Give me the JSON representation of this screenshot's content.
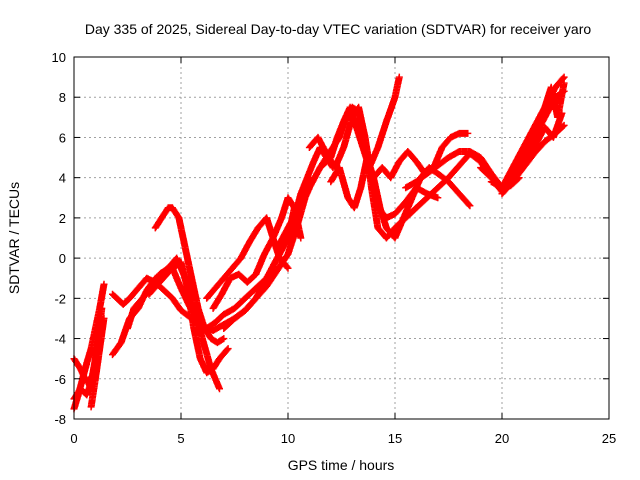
{
  "chart_data": {
    "type": "scatter",
    "title": "Day 335 of 2025, Sidereal Day-to-day VTEC variation (SDTVAR) for receiver yaro",
    "xlabel": "GPS time / hours",
    "ylabel": "SDTVAR / TECUs",
    "xlim": [
      0,
      25
    ],
    "ylim": [
      -8,
      10
    ],
    "xticks": [
      0,
      5,
      10,
      15,
      20,
      25
    ],
    "yticks": [
      -8,
      -6,
      -4,
      -2,
      0,
      2,
      4,
      6,
      8,
      10
    ],
    "grid": true,
    "marker": "plus",
    "color": "#ff0000",
    "series": [
      {
        "x": [
          0.0,
          0.2,
          0.4,
          0.6,
          0.8,
          1.0,
          1.2,
          1.4
        ],
        "y": [
          -7.5,
          -6.8,
          -6.0,
          -5.2,
          -4.5,
          -3.5,
          -2.5,
          -1.3
        ]
      },
      {
        "x": [
          0.0,
          0.3,
          0.6,
          0.9,
          1.1,
          1.3
        ],
        "y": [
          -5.0,
          -5.5,
          -6.2,
          -5.8,
          -4.2,
          -2.5
        ]
      },
      {
        "x": [
          0.0,
          0.3,
          0.6,
          0.8,
          1.0,
          1.2
        ],
        "y": [
          -7.0,
          -6.5,
          -6.8,
          -6.2,
          -5.0,
          -3.5
        ]
      },
      {
        "x": [
          0.8,
          1.0,
          1.2,
          1.4
        ],
        "y": [
          -7.4,
          -6.0,
          -4.5,
          -3.0
        ]
      },
      {
        "x": [
          1.8,
          2.0,
          2.3,
          2.6,
          3.0,
          3.4,
          3.8,
          4.2,
          4.6,
          5.0,
          5.5,
          6.0,
          6.5,
          7.0,
          7.5,
          8.0,
          8.5,
          9.0,
          9.5,
          10.0,
          10.4,
          10.8,
          11.2
        ],
        "y": [
          -1.8,
          -2.0,
          -2.3,
          -2.0,
          -1.5,
          -1.0,
          -1.2,
          -1.6,
          -2.0,
          -2.6,
          -3.0,
          -3.4,
          -3.6,
          -3.3,
          -3.0,
          -2.6,
          -2.0,
          -1.4,
          -0.6,
          0.2,
          1.5,
          3.0,
          4.0
        ]
      },
      {
        "x": [
          1.8,
          2.2,
          2.6,
          3.0,
          3.4,
          3.8,
          4.2,
          4.6,
          5.0,
          5.4,
          5.8,
          6.2,
          6.6,
          7.0,
          7.5,
          8.0,
          8.5,
          9.0,
          9.5,
          10.0,
          10.3
        ],
        "y": [
          -4.8,
          -4.2,
          -3.0,
          -2.5,
          -1.6,
          -1.0,
          -0.8,
          -0.5,
          -1.5,
          -2.4,
          -3.0,
          -3.5,
          -3.2,
          -2.8,
          -2.5,
          -2.0,
          -1.5,
          -1.0,
          0.0,
          1.0,
          2.5
        ]
      },
      {
        "x": [
          2.5,
          2.8,
          3.2,
          3.6,
          4.0,
          4.4,
          4.8,
          5.2,
          5.6,
          6.0,
          6.4,
          6.8
        ],
        "y": [
          -3.5,
          -2.5,
          -2.0,
          -1.5,
          -0.8,
          -0.5,
          0.0,
          -1.0,
          -2.5,
          -4.0,
          -5.5,
          -6.5
        ]
      },
      {
        "x": [
          3.8,
          4.1,
          4.4,
          4.6,
          4.9,
          5.2,
          5.5,
          5.8,
          6.1,
          6.4,
          6.7,
          7.0
        ],
        "y": [
          1.5,
          2.0,
          2.5,
          2.5,
          2.0,
          0.5,
          -1.0,
          -2.5,
          -3.5,
          -4.0,
          -4.2,
          -4.0
        ]
      },
      {
        "x": [
          3.5,
          4.0,
          4.5,
          5.0,
          5.3,
          5.6,
          5.9,
          6.2,
          6.5,
          6.8,
          7.2
        ],
        "y": [
          -1.8,
          -1.2,
          -0.6,
          -0.2,
          -1.5,
          -3.5,
          -5.0,
          -5.7,
          -5.5,
          -5.0,
          -4.5
        ]
      },
      {
        "x": [
          6.2,
          6.6,
          7.0,
          7.4,
          7.8,
          8.2,
          8.6,
          9.0,
          9.3,
          9.6,
          10.0
        ],
        "y": [
          -2.0,
          -1.5,
          -1.0,
          -0.5,
          0.0,
          0.8,
          1.5,
          2.0,
          1.0,
          0.0,
          -0.5
        ]
      },
      {
        "x": [
          6.5,
          6.9,
          7.3,
          7.7,
          8.1,
          8.5,
          8.9,
          9.3,
          9.7,
          10.0,
          10.3,
          10.6
        ],
        "y": [
          -2.5,
          -1.8,
          -1.0,
          -0.8,
          -1.2,
          -0.8,
          0.2,
          1.0,
          2.0,
          3.0,
          2.5,
          1.0
        ]
      },
      {
        "x": [
          7.0,
          7.5,
          8.0,
          8.5,
          9.0,
          9.5,
          10.0,
          10.3,
          10.6,
          10.9,
          11.2,
          11.5,
          11.8,
          12.1
        ],
        "y": [
          -3.5,
          -3.0,
          -2.6,
          -2.0,
          -1.0,
          0.0,
          1.0,
          2.0,
          3.2,
          4.0,
          4.8,
          5.5,
          5.0,
          4.5
        ]
      },
      {
        "x": [
          9.5,
          10.0,
          10.5,
          11.0,
          11.5,
          12.0,
          12.3,
          12.6,
          12.9,
          13.2,
          13.5,
          13.8,
          14.2,
          14.6,
          15.0,
          15.2
        ],
        "y": [
          0.5,
          1.5,
          2.5,
          3.5,
          4.5,
          5.0,
          6.0,
          6.8,
          7.5,
          6.5,
          5.5,
          4.5,
          5.5,
          6.8,
          8.0,
          9.0
        ]
      },
      {
        "x": [
          11.0,
          11.4,
          11.8,
          12.2,
          12.6,
          13.0,
          13.3,
          13.6,
          13.9,
          14.2,
          14.6,
          15.0,
          15.5,
          16.0,
          16.5,
          17.0
        ],
        "y": [
          5.5,
          6.0,
          5.2,
          4.5,
          5.5,
          7.0,
          7.5,
          6.0,
          4.0,
          2.5,
          2.0,
          2.2,
          2.8,
          3.5,
          3.2,
          3.0
        ]
      },
      {
        "x": [
          11.5,
          11.8,
          12.1,
          12.4,
          12.7,
          13.0,
          13.3,
          13.6,
          13.9,
          14.2,
          14.6,
          15.0,
          15.5,
          16.0
        ],
        "y": [
          4.5,
          5.0,
          5.5,
          6.0,
          7.0,
          7.5,
          7.3,
          6.0,
          3.5,
          1.5,
          1.0,
          1.5,
          2.0,
          2.5
        ]
      },
      {
        "x": [
          12.0,
          12.4,
          12.8,
          13.1,
          13.4,
          13.7,
          14.0,
          14.3,
          14.6,
          15.0,
          15.4,
          15.8,
          16.2,
          16.6,
          17.0,
          17.5,
          18.0,
          18.5
        ],
        "y": [
          3.8,
          4.5,
          3.0,
          2.5,
          3.5,
          5.0,
          4.0,
          2.5,
          1.5,
          1.0,
          2.0,
          3.0,
          4.0,
          4.5,
          4.2,
          3.8,
          3.2,
          2.6
        ]
      },
      {
        "x": [
          14.0,
          14.4,
          14.8,
          15.2,
          15.6,
          16.0,
          16.4,
          16.8,
          17.2,
          17.6,
          18.0,
          18.4
        ],
        "y": [
          4.0,
          4.5,
          4.0,
          4.8,
          5.3,
          4.8,
          4.2,
          4.5,
          5.5,
          6.0,
          6.2,
          6.2
        ]
      },
      {
        "x": [
          15.5,
          16.0,
          16.5,
          17.0,
          17.5,
          18.0,
          18.5,
          19.0,
          19.5,
          20.0,
          20.4,
          20.8
        ],
        "y": [
          3.5,
          3.8,
          4.2,
          4.6,
          5.0,
          5.3,
          5.3,
          5.0,
          4.2,
          3.5,
          3.6,
          4.0
        ]
      },
      {
        "x": [
          16.0,
          16.5,
          17.0,
          17.5,
          18.0,
          18.5,
          19.0,
          19.5,
          20.0
        ],
        "y": [
          2.5,
          3.0,
          3.5,
          4.0,
          4.6,
          5.2,
          4.8,
          4.0,
          3.3
        ]
      },
      {
        "x": [
          19.0,
          19.5,
          20.0,
          20.5,
          21.0,
          21.5,
          22.0,
          22.5,
          22.9
        ],
        "y": [
          4.5,
          4.0,
          3.5,
          4.5,
          5.5,
          6.5,
          7.5,
          8.5,
          9.0
        ]
      },
      {
        "x": [
          19.5,
          20.0,
          20.5,
          21.0,
          21.5,
          22.0,
          22.5,
          22.9
        ],
        "y": [
          3.8,
          3.5,
          4.2,
          5.0,
          6.0,
          7.0,
          8.0,
          8.3
        ]
      },
      {
        "x": [
          20.0,
          20.5,
          21.0,
          21.5,
          22.0,
          22.5,
          22.9
        ],
        "y": [
          3.2,
          3.8,
          4.5,
          5.2,
          5.8,
          6.2,
          6.6
        ]
      },
      {
        "x": [
          20.5,
          21.0,
          21.5,
          22.0,
          22.4,
          22.8
        ],
        "y": [
          4.0,
          4.8,
          5.5,
          6.5,
          6.0,
          7.2
        ]
      },
      {
        "x": [
          21.5,
          22.0,
          22.3,
          22.6,
          22.9
        ],
        "y": [
          5.5,
          7.5,
          8.5,
          7.0,
          8.7
        ]
      }
    ]
  }
}
